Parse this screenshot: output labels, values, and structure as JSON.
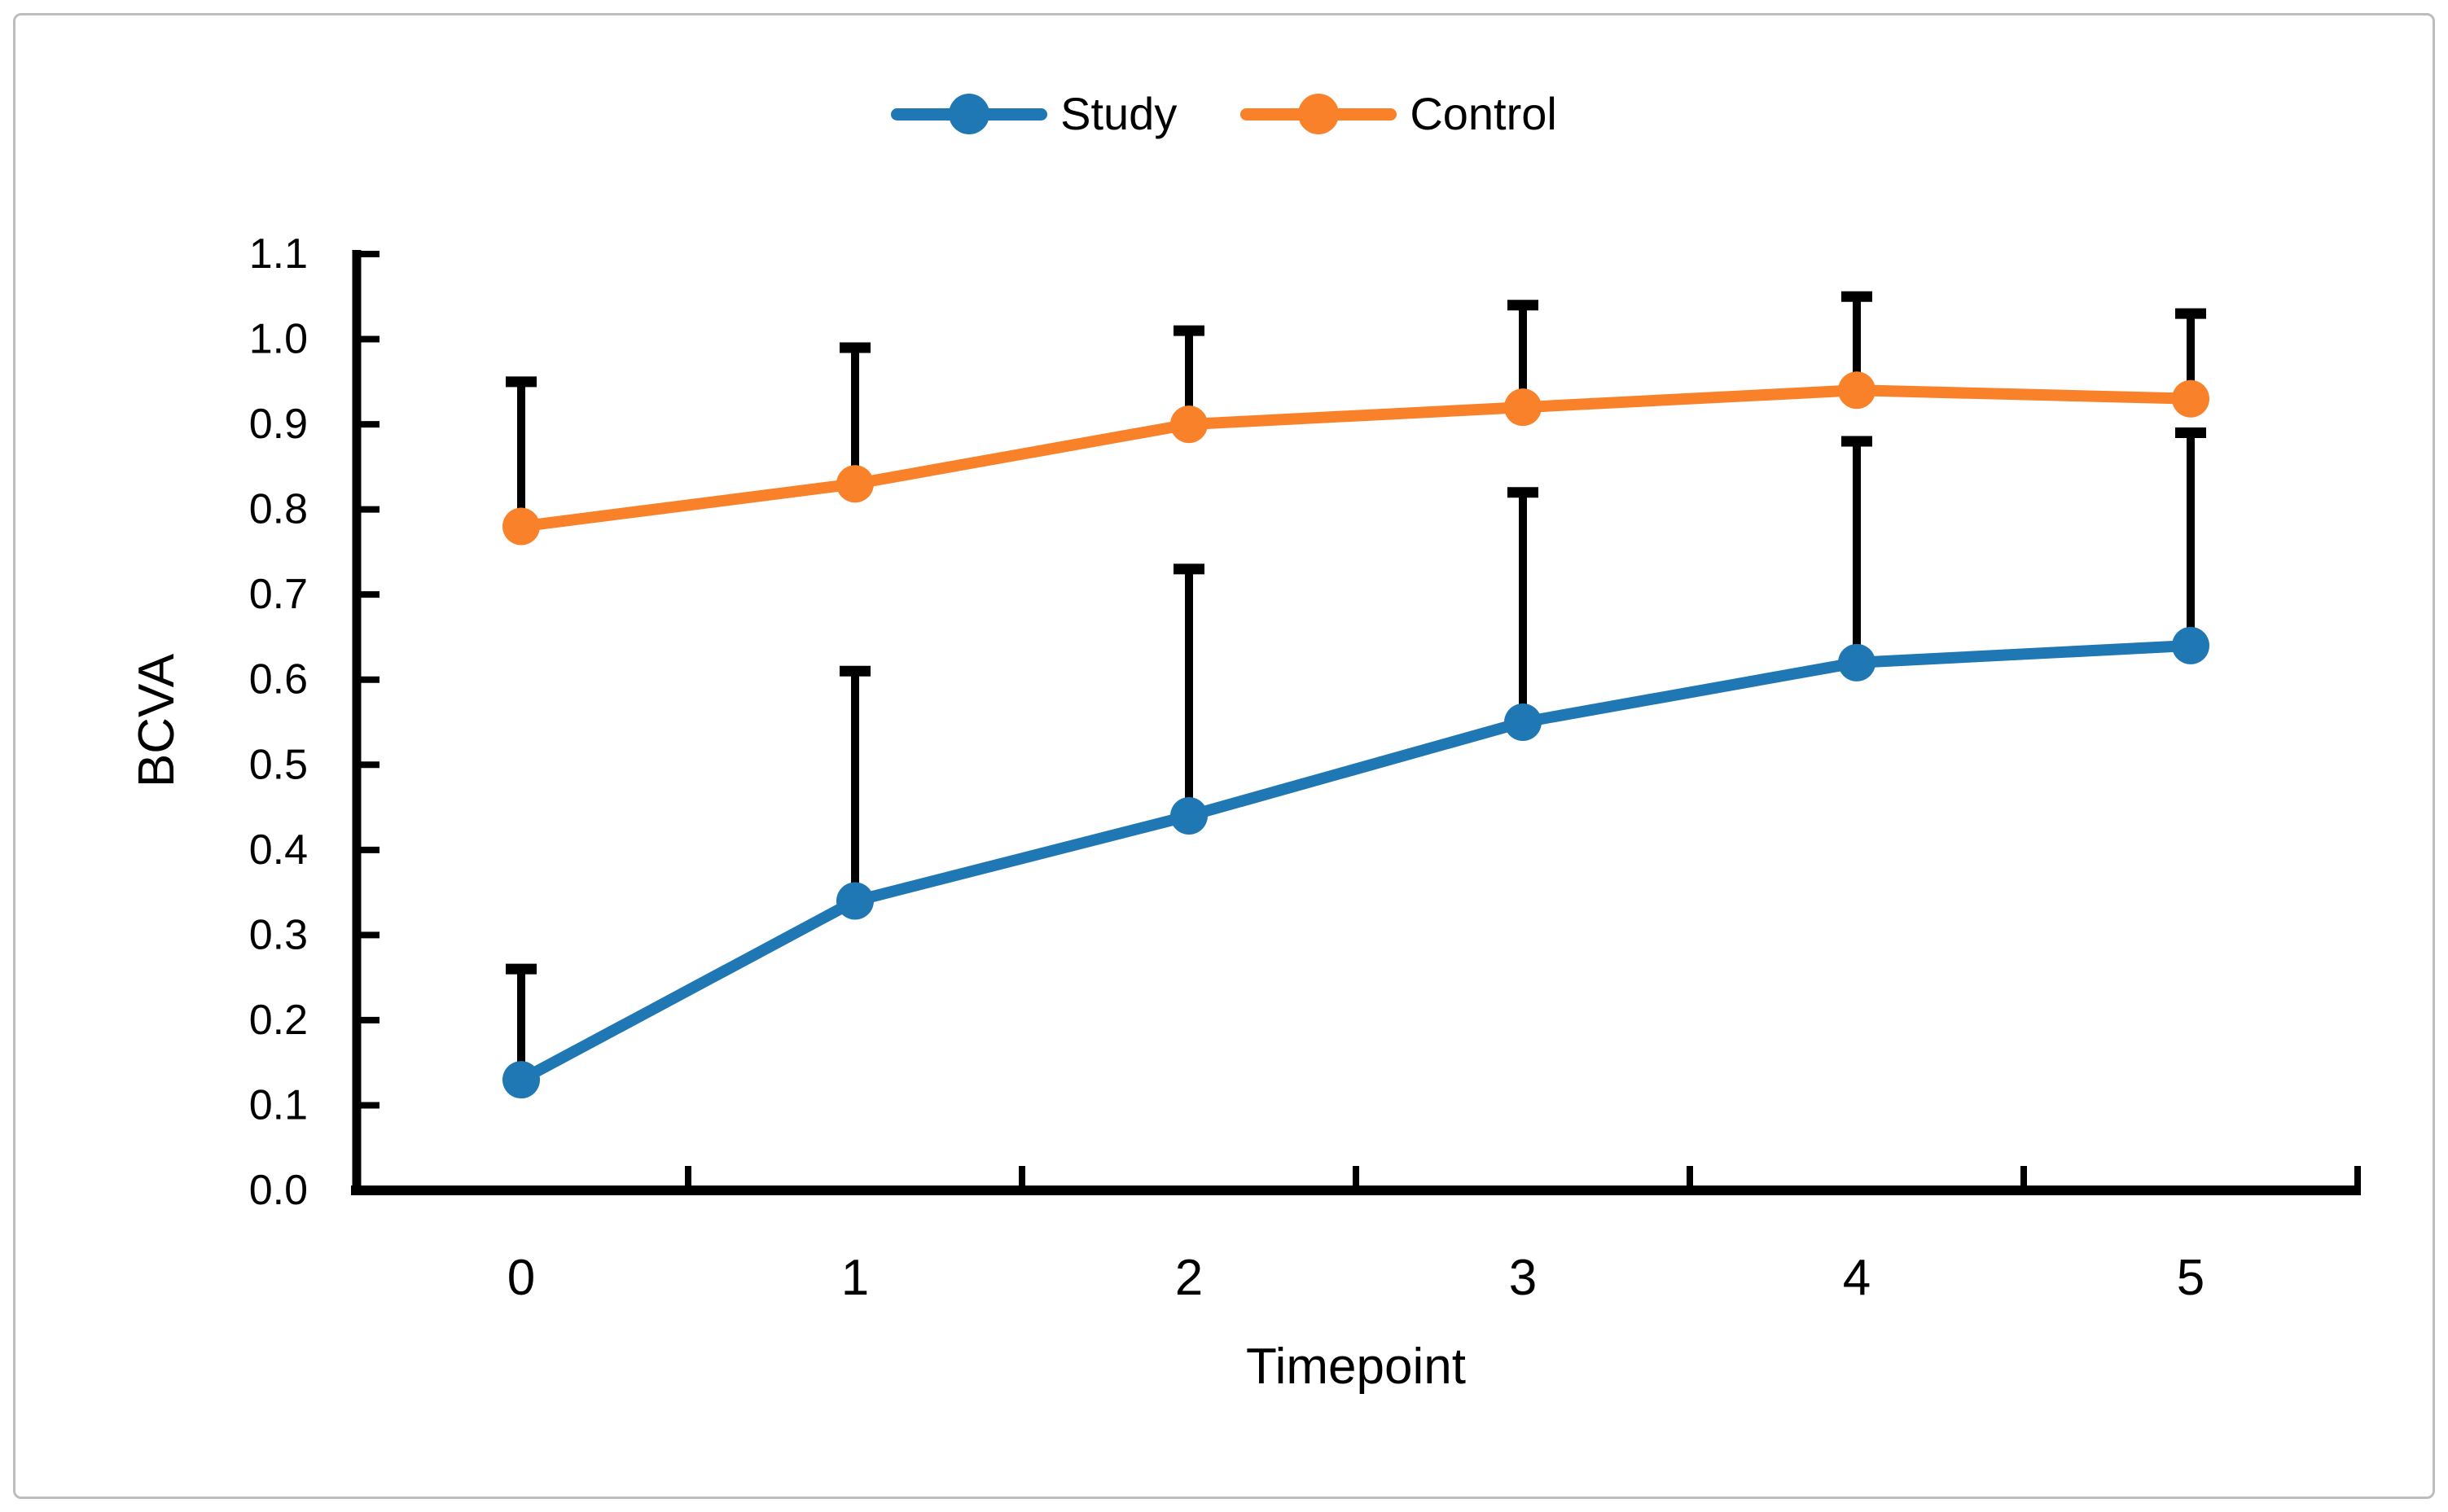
{
  "figure": {
    "border_color": "#bdbdbd",
    "background": "#ffffff",
    "text_color": "#000000"
  },
  "chart_data": {
    "type": "line",
    "title": "",
    "xlabel": "Timepoint",
    "ylabel": "BCVA",
    "categories": [
      "0",
      "1",
      "2",
      "3",
      "4",
      "5"
    ],
    "ylim": [
      0.0,
      1.1
    ],
    "ytick_step": 0.1,
    "ytick_labels": [
      "0.0",
      "0.1",
      "0.2",
      "0.3",
      "0.4",
      "0.5",
      "0.6",
      "0.7",
      "0.8",
      "0.9",
      "1.0",
      "1.1"
    ],
    "grid": false,
    "legend_position": "top-center",
    "axis_color": "#000000",
    "error_bar_color": "#000000",
    "error_bar_direction": "up-only",
    "series": [
      {
        "name": "Study",
        "color": "#1f77b4",
        "values": [
          0.13,
          0.34,
          0.44,
          0.55,
          0.62,
          0.64
        ],
        "error_up": [
          0.13,
          0.27,
          0.29,
          0.27,
          0.26,
          0.25
        ],
        "error_tops": [
          0.26,
          0.61,
          0.73,
          0.82,
          0.88,
          0.89
        ]
      },
      {
        "name": "Control",
        "color": "#f9812a",
        "values": [
          0.78,
          0.83,
          0.9,
          0.92,
          0.94,
          0.93
        ],
        "error_up": [
          0.17,
          0.16,
          0.11,
          0.12,
          0.11,
          0.1
        ],
        "error_tops": [
          0.95,
          0.99,
          1.01,
          1.04,
          1.05,
          1.03
        ]
      }
    ]
  }
}
